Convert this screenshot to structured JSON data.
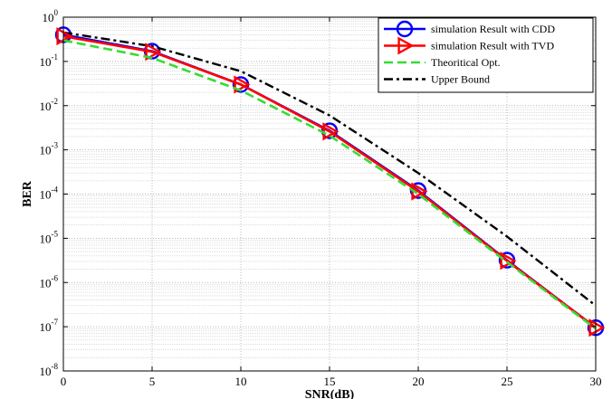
{
  "chart_data": {
    "type": "line",
    "xlabel": "SNR(dB)",
    "ylabel": "BER",
    "xlim": [
      0,
      30
    ],
    "ylim": [
      1e-08,
      1
    ],
    "yscale": "log",
    "grid": true,
    "minor_grid": true,
    "legend_position": "top-right",
    "x_ticks": [
      "0",
      "5",
      "10",
      "15",
      "20",
      "25",
      "30"
    ],
    "y_ticks": [
      {
        "base": "10",
        "exp": "0"
      },
      {
        "base": "10",
        "exp": "-1"
      },
      {
        "base": "10",
        "exp": "-2"
      },
      {
        "base": "10",
        "exp": "-3"
      },
      {
        "base": "10",
        "exp": "-4"
      },
      {
        "base": "10",
        "exp": "-5"
      },
      {
        "base": "10",
        "exp": "-6"
      },
      {
        "base": "10",
        "exp": "-7"
      },
      {
        "base": "10",
        "exp": "-8"
      }
    ],
    "x": [
      0,
      5,
      10,
      15,
      20,
      25,
      30
    ],
    "series": [
      {
        "name": "simulation Result with CDD",
        "color": "#0000ff",
        "style": "solid",
        "marker": "circle",
        "values": [
          0.4,
          0.17,
          0.03,
          0.0027,
          0.00012,
          3.2e-06,
          9.5e-08
        ]
      },
      {
        "name": "simulation Result with TVD",
        "color": "#ff0000",
        "style": "solid",
        "marker": "triangle-right",
        "values": [
          0.37,
          0.165,
          0.03,
          0.0026,
          0.000115,
          3.1e-06,
          9.5e-08
        ]
      },
      {
        "name": "Theoritical Opt.",
        "color": "#33dd33",
        "style": "dashed",
        "marker": "none",
        "values": [
          0.3,
          0.12,
          0.022,
          0.0021,
          0.0001,
          2.9e-06,
          9e-08
        ]
      },
      {
        "name": "Upper Bound",
        "color": "#000000",
        "style": "dashdot",
        "marker": "none",
        "values": [
          0.45,
          0.22,
          0.06,
          0.006,
          0.0003,
          1.1e-05,
          3e-07
        ]
      }
    ]
  }
}
